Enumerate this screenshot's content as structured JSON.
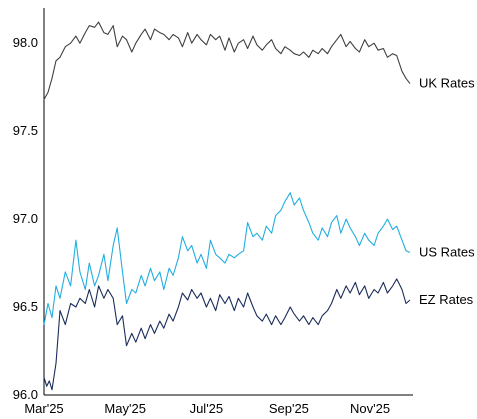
{
  "chart_data": {
    "type": "line",
    "title": "",
    "xlabel": "",
    "ylabel": "",
    "ylim": [
      96.0,
      98.2
    ],
    "xlim": [
      "2025-03-01",
      "2025-12-01"
    ],
    "grid": false,
    "legend": "none (series labelled at right end of lines)",
    "yticks": [
      {
        "value": 96.0,
        "label": "96.0"
      },
      {
        "value": 96.5,
        "label": "96.5"
      },
      {
        "value": 97.0,
        "label": "97.0"
      },
      {
        "value": 97.5,
        "label": "97.5"
      },
      {
        "value": 98.0,
        "label": "98.0"
      }
    ],
    "xticks": [
      {
        "value": "2025-03-01",
        "label": "Mar'25"
      },
      {
        "value": "2025-05-01",
        "label": "May'25"
      },
      {
        "value": "2025-07-01",
        "label": "Jul'25"
      },
      {
        "value": "2025-09-01",
        "label": "Sep'25"
      },
      {
        "value": "2025-11-01",
        "label": "Nov'25"
      }
    ],
    "series": [
      {
        "name": "UK Rates",
        "color": "#404040",
        "points": [
          [
            "2025-03-01",
            97.68
          ],
          [
            "2025-03-04",
            97.72
          ],
          [
            "2025-03-07",
            97.8
          ],
          [
            "2025-03-10",
            97.9
          ],
          [
            "2025-03-13",
            97.92
          ],
          [
            "2025-03-17",
            97.98
          ],
          [
            "2025-03-21",
            98.0
          ],
          [
            "2025-03-25",
            98.04
          ],
          [
            "2025-03-28",
            98.0
          ],
          [
            "2025-04-01",
            98.06
          ],
          [
            "2025-04-04",
            98.1
          ],
          [
            "2025-04-08",
            98.09
          ],
          [
            "2025-04-11",
            98.12
          ],
          [
            "2025-04-15",
            98.06
          ],
          [
            "2025-04-18",
            98.05
          ],
          [
            "2025-04-22",
            98.1
          ],
          [
            "2025-04-25",
            97.98
          ],
          [
            "2025-04-29",
            98.04
          ],
          [
            "2025-05-02",
            98.02
          ],
          [
            "2025-05-06",
            97.95
          ],
          [
            "2025-05-09",
            98.0
          ],
          [
            "2025-05-13",
            98.05
          ],
          [
            "2025-05-16",
            98.08
          ],
          [
            "2025-05-20",
            98.02
          ],
          [
            "2025-05-23",
            98.08
          ],
          [
            "2025-05-27",
            98.06
          ],
          [
            "2025-05-30",
            98.05
          ],
          [
            "2025-06-03",
            98.02
          ],
          [
            "2025-06-06",
            98.05
          ],
          [
            "2025-06-10",
            98.03
          ],
          [
            "2025-06-13",
            97.98
          ],
          [
            "2025-06-17",
            98.06
          ],
          [
            "2025-06-20",
            98.0
          ],
          [
            "2025-06-24",
            98.05
          ],
          [
            "2025-06-27",
            98.02
          ],
          [
            "2025-07-01",
            97.99
          ],
          [
            "2025-07-04",
            98.05
          ],
          [
            "2025-07-08",
            98.02
          ],
          [
            "2025-07-11",
            98.04
          ],
          [
            "2025-07-15",
            97.96
          ],
          [
            "2025-07-18",
            98.03
          ],
          [
            "2025-07-22",
            97.95
          ],
          [
            "2025-07-25",
            98.0
          ],
          [
            "2025-07-29",
            98.02
          ],
          [
            "2025-08-01",
            97.97
          ],
          [
            "2025-08-05",
            98.04
          ],
          [
            "2025-08-08",
            97.99
          ],
          [
            "2025-08-12",
            97.96
          ],
          [
            "2025-08-15",
            97.99
          ],
          [
            "2025-08-19",
            98.02
          ],
          [
            "2025-08-22",
            97.97
          ],
          [
            "2025-08-26",
            97.94
          ],
          [
            "2025-08-29",
            97.98
          ],
          [
            "2025-09-02",
            97.96
          ],
          [
            "2025-09-05",
            97.94
          ],
          [
            "2025-09-09",
            97.93
          ],
          [
            "2025-09-12",
            97.95
          ],
          [
            "2025-09-16",
            97.92
          ],
          [
            "2025-09-19",
            97.96
          ],
          [
            "2025-09-23",
            97.94
          ],
          [
            "2025-09-26",
            97.97
          ],
          [
            "2025-09-30",
            97.94
          ],
          [
            "2025-10-03",
            97.98
          ],
          [
            "2025-10-07",
            98.02
          ],
          [
            "2025-10-10",
            98.05
          ],
          [
            "2025-10-14",
            97.98
          ],
          [
            "2025-10-17",
            98.01
          ],
          [
            "2025-10-21",
            97.97
          ],
          [
            "2025-10-24",
            97.95
          ],
          [
            "2025-10-28",
            98.02
          ],
          [
            "2025-10-31",
            97.98
          ],
          [
            "2025-11-04",
            98.0
          ],
          [
            "2025-11-07",
            97.96
          ],
          [
            "2025-11-11",
            97.97
          ],
          [
            "2025-11-14",
            97.92
          ],
          [
            "2025-11-18",
            97.94
          ],
          [
            "2025-11-21",
            97.93
          ],
          [
            "2025-11-25",
            97.84
          ],
          [
            "2025-11-28",
            97.8
          ],
          [
            "2025-12-01",
            97.77
          ]
        ]
      },
      {
        "name": "US Rates",
        "color": "#22aee0",
        "points": [
          [
            "2025-03-01",
            96.4
          ],
          [
            "2025-03-04",
            96.52
          ],
          [
            "2025-03-07",
            96.44
          ],
          [
            "2025-03-10",
            96.62
          ],
          [
            "2025-03-13",
            96.55
          ],
          [
            "2025-03-17",
            96.7
          ],
          [
            "2025-03-21",
            96.62
          ],
          [
            "2025-03-25",
            96.88
          ],
          [
            "2025-03-28",
            96.7
          ],
          [
            "2025-04-01",
            96.6
          ],
          [
            "2025-04-04",
            96.75
          ],
          [
            "2025-04-08",
            96.62
          ],
          [
            "2025-04-11",
            96.68
          ],
          [
            "2025-04-15",
            96.8
          ],
          [
            "2025-04-18",
            96.65
          ],
          [
            "2025-04-22",
            96.85
          ],
          [
            "2025-04-25",
            96.95
          ],
          [
            "2025-04-29",
            96.7
          ],
          [
            "2025-05-02",
            96.52
          ],
          [
            "2025-05-06",
            96.6
          ],
          [
            "2025-05-09",
            96.58
          ],
          [
            "2025-05-13",
            96.68
          ],
          [
            "2025-05-16",
            96.62
          ],
          [
            "2025-05-20",
            96.72
          ],
          [
            "2025-05-23",
            96.65
          ],
          [
            "2025-05-27",
            96.7
          ],
          [
            "2025-05-30",
            96.6
          ],
          [
            "2025-06-03",
            96.72
          ],
          [
            "2025-06-06",
            96.68
          ],
          [
            "2025-06-10",
            96.78
          ],
          [
            "2025-06-13",
            96.9
          ],
          [
            "2025-06-17",
            96.82
          ],
          [
            "2025-06-20",
            96.85
          ],
          [
            "2025-06-24",
            96.75
          ],
          [
            "2025-06-27",
            96.8
          ],
          [
            "2025-07-01",
            96.72
          ],
          [
            "2025-07-04",
            96.88
          ],
          [
            "2025-07-08",
            96.8
          ],
          [
            "2025-07-11",
            96.78
          ],
          [
            "2025-07-15",
            96.75
          ],
          [
            "2025-07-18",
            96.8
          ],
          [
            "2025-07-22",
            96.78
          ],
          [
            "2025-07-25",
            96.8
          ],
          [
            "2025-07-29",
            96.82
          ],
          [
            "2025-08-01",
            96.98
          ],
          [
            "2025-08-05",
            96.9
          ],
          [
            "2025-08-08",
            96.92
          ],
          [
            "2025-08-12",
            96.88
          ],
          [
            "2025-08-15",
            96.96
          ],
          [
            "2025-08-19",
            96.92
          ],
          [
            "2025-08-22",
            97.02
          ],
          [
            "2025-08-26",
            97.05
          ],
          [
            "2025-08-29",
            97.1
          ],
          [
            "2025-09-02",
            97.15
          ],
          [
            "2025-09-05",
            97.08
          ],
          [
            "2025-09-09",
            97.12
          ],
          [
            "2025-09-12",
            97.05
          ],
          [
            "2025-09-16",
            96.98
          ],
          [
            "2025-09-19",
            96.92
          ],
          [
            "2025-09-23",
            96.88
          ],
          [
            "2025-09-26",
            96.95
          ],
          [
            "2025-09-30",
            96.9
          ],
          [
            "2025-10-03",
            96.98
          ],
          [
            "2025-10-07",
            97.02
          ],
          [
            "2025-10-10",
            96.92
          ],
          [
            "2025-10-14",
            97.0
          ],
          [
            "2025-10-17",
            96.95
          ],
          [
            "2025-10-21",
            96.9
          ],
          [
            "2025-10-24",
            96.85
          ],
          [
            "2025-10-28",
            96.92
          ],
          [
            "2025-10-31",
            96.88
          ],
          [
            "2025-11-04",
            96.85
          ],
          [
            "2025-11-07",
            96.92
          ],
          [
            "2025-11-11",
            96.96
          ],
          [
            "2025-11-14",
            97.0
          ],
          [
            "2025-11-18",
            96.94
          ],
          [
            "2025-11-21",
            96.96
          ],
          [
            "2025-11-25",
            96.88
          ],
          [
            "2025-11-28",
            96.82
          ],
          [
            "2025-12-01",
            96.81
          ]
        ]
      },
      {
        "name": "EZ Rates",
        "color": "#1a2d5a",
        "points": [
          [
            "2025-03-01",
            96.1
          ],
          [
            "2025-03-03",
            96.05
          ],
          [
            "2025-03-05",
            96.08
          ],
          [
            "2025-03-07",
            96.03
          ],
          [
            "2025-03-10",
            96.18
          ],
          [
            "2025-03-13",
            96.48
          ],
          [
            "2025-03-17",
            96.4
          ],
          [
            "2025-03-21",
            96.52
          ],
          [
            "2025-03-25",
            96.5
          ],
          [
            "2025-03-28",
            96.55
          ],
          [
            "2025-04-01",
            96.52
          ],
          [
            "2025-04-04",
            96.6
          ],
          [
            "2025-04-08",
            96.5
          ],
          [
            "2025-04-11",
            96.62
          ],
          [
            "2025-04-15",
            96.55
          ],
          [
            "2025-04-18",
            96.6
          ],
          [
            "2025-04-22",
            96.55
          ],
          [
            "2025-04-25",
            96.4
          ],
          [
            "2025-04-29",
            96.45
          ],
          [
            "2025-05-02",
            96.28
          ],
          [
            "2025-05-06",
            96.35
          ],
          [
            "2025-05-09",
            96.3
          ],
          [
            "2025-05-13",
            96.38
          ],
          [
            "2025-05-16",
            96.32
          ],
          [
            "2025-05-20",
            96.4
          ],
          [
            "2025-05-23",
            96.35
          ],
          [
            "2025-05-27",
            96.42
          ],
          [
            "2025-05-30",
            96.38
          ],
          [
            "2025-06-03",
            96.46
          ],
          [
            "2025-06-06",
            96.42
          ],
          [
            "2025-06-10",
            96.5
          ],
          [
            "2025-06-13",
            96.58
          ],
          [
            "2025-06-17",
            96.54
          ],
          [
            "2025-06-20",
            96.6
          ],
          [
            "2025-06-24",
            96.55
          ],
          [
            "2025-06-27",
            96.58
          ],
          [
            "2025-07-01",
            96.5
          ],
          [
            "2025-07-04",
            96.55
          ],
          [
            "2025-07-08",
            96.48
          ],
          [
            "2025-07-11",
            96.57
          ],
          [
            "2025-07-15",
            96.52
          ],
          [
            "2025-07-18",
            96.56
          ],
          [
            "2025-07-22",
            96.48
          ],
          [
            "2025-07-25",
            96.55
          ],
          [
            "2025-07-29",
            96.5
          ],
          [
            "2025-08-01",
            96.58
          ],
          [
            "2025-08-05",
            96.5
          ],
          [
            "2025-08-08",
            96.45
          ],
          [
            "2025-08-12",
            96.42
          ],
          [
            "2025-08-15",
            96.46
          ],
          [
            "2025-08-19",
            96.4
          ],
          [
            "2025-08-22",
            96.45
          ],
          [
            "2025-08-26",
            96.4
          ],
          [
            "2025-08-29",
            96.44
          ],
          [
            "2025-09-02",
            96.5
          ],
          [
            "2025-09-05",
            96.46
          ],
          [
            "2025-09-09",
            96.42
          ],
          [
            "2025-09-12",
            96.45
          ],
          [
            "2025-09-16",
            96.4
          ],
          [
            "2025-09-19",
            96.44
          ],
          [
            "2025-09-23",
            96.4
          ],
          [
            "2025-09-26",
            96.45
          ],
          [
            "2025-09-30",
            96.48
          ],
          [
            "2025-10-03",
            96.52
          ],
          [
            "2025-10-07",
            96.6
          ],
          [
            "2025-10-10",
            96.55
          ],
          [
            "2025-10-14",
            96.62
          ],
          [
            "2025-10-17",
            96.58
          ],
          [
            "2025-10-21",
            96.64
          ],
          [
            "2025-10-24",
            96.57
          ],
          [
            "2025-10-28",
            96.62
          ],
          [
            "2025-10-31",
            96.55
          ],
          [
            "2025-11-04",
            96.6
          ],
          [
            "2025-11-07",
            96.58
          ],
          [
            "2025-11-11",
            96.64
          ],
          [
            "2025-11-14",
            96.58
          ],
          [
            "2025-11-18",
            96.62
          ],
          [
            "2025-11-21",
            96.66
          ],
          [
            "2025-11-25",
            96.6
          ],
          [
            "2025-11-28",
            96.52
          ],
          [
            "2025-12-01",
            96.54
          ]
        ]
      }
    ]
  }
}
